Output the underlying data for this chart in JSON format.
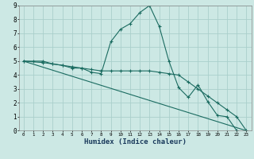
{
  "title": "",
  "xlabel": "Humidex (Indice chaleur)",
  "ylabel": "",
  "background_color": "#cce8e4",
  "grid_color": "#aacfcb",
  "line_color": "#1a6b60",
  "xlim": [
    -0.5,
    23.5
  ],
  "ylim": [
    0,
    9
  ],
  "line1_x": [
    0,
    1,
    2,
    3,
    4,
    5,
    6,
    7,
    8,
    9,
    10,
    11,
    12,
    13,
    14,
    15,
    16,
    17,
    18,
    19,
    20,
    21,
    22
  ],
  "line1_y": [
    5,
    5,
    5,
    4.8,
    4.7,
    4.5,
    4.5,
    4.2,
    4.1,
    6.4,
    7.3,
    7.7,
    8.5,
    9.0,
    7.5,
    5.0,
    3.1,
    2.4,
    3.3,
    2.1,
    1.1,
    1.0,
    0.0
  ],
  "line2_x": [
    0,
    2,
    3,
    4,
    5,
    6,
    7,
    8,
    9,
    10,
    11,
    12,
    13,
    14,
    15,
    16,
    17,
    18,
    19,
    20,
    21,
    22,
    23
  ],
  "line2_y": [
    5,
    4.9,
    4.8,
    4.7,
    4.6,
    4.5,
    4.4,
    4.3,
    4.3,
    4.3,
    4.3,
    4.3,
    4.3,
    4.2,
    4.1,
    4.0,
    3.5,
    3.0,
    2.5,
    2.0,
    1.5,
    1.0,
    0.0
  ],
  "line3_x": [
    0,
    23
  ],
  "line3_y": [
    5,
    0
  ]
}
